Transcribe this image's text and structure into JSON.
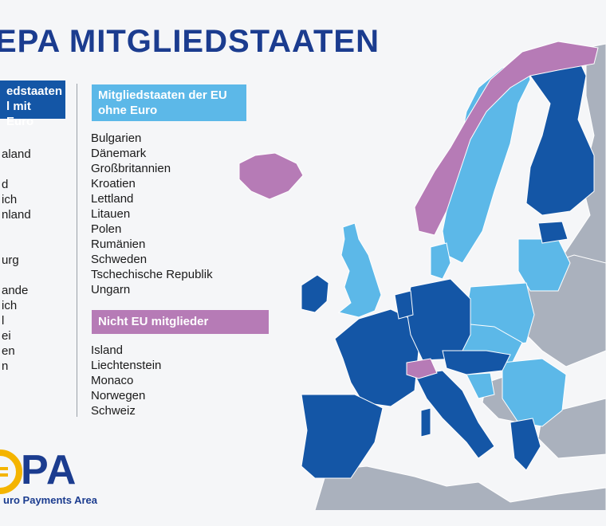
{
  "title": "EPA MITGLIEDSTAATEN",
  "euro_header": [
    "edstaaten",
    "l mit Euro"
  ],
  "euro_list": [
    "aland",
    "",
    "d",
    "ich",
    "nland",
    "",
    "",
    "urg",
    "",
    "ande",
    "ich",
    "l",
    "ei",
    "en",
    "n"
  ],
  "eu_no_euro_header": [
    "Mitgliedstaaten der EU",
    "ohne Euro"
  ],
  "eu_no_euro_list": [
    "Bulgarien",
    "Dänemark",
    "Großbritannien",
    "Kroatien",
    "Lettland",
    "Litauen",
    "Polen",
    "Rumänien",
    "Schweden",
    "Tschechische Republik",
    "Ungarn"
  ],
  "non_eu_header": "Nicht EU mitglieder",
  "non_eu_list": [
    "Island",
    "Liechtenstein",
    "Monaco",
    "Norwegen",
    "Schweiz"
  ],
  "logo": {
    "main": "PA",
    "sub": "uro Payments Area"
  },
  "colors": {
    "euro": "#1456a6",
    "eu_no_euro": "#5cb8e8",
    "non_eu": "#b67bb6",
    "other": "#aab1bd",
    "title": "#1b3c8f"
  }
}
